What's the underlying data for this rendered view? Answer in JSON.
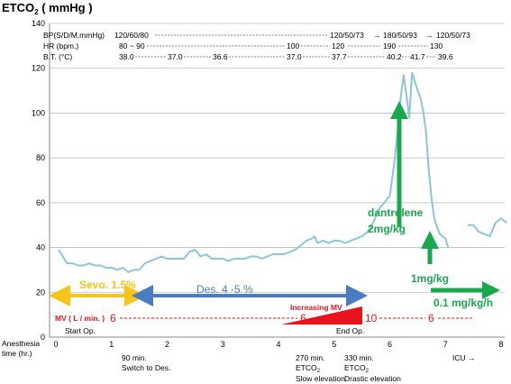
{
  "chart_data": {
    "type": "line",
    "title": "ETCO₂ ( mmHg )",
    "title_main": "ETCO",
    "title_sub": "2",
    "title_unit": " ( mmHg )",
    "xlabel_line1": "Anesthesia",
    "xlabel_line2": "time (hr.)",
    "xlim": [
      0,
      8
    ],
    "ylim": [
      0,
      140
    ],
    "x_ticks": [
      "0",
      "1",
      "2",
      "3",
      "4",
      "5",
      "6",
      "7",
      "8"
    ],
    "y_ticks": [
      "0",
      "20",
      "40",
      "60",
      "80",
      "100",
      "120",
      "140"
    ],
    "grid": "horizontal",
    "series": [
      {
        "name": "",
        "color": "#8cc6d6",
        "points": [
          [
            0.05,
            39
          ],
          [
            0.1,
            37
          ],
          [
            0.2,
            33
          ],
          [
            0.3,
            33
          ],
          [
            0.4,
            32
          ],
          [
            0.5,
            32
          ],
          [
            0.6,
            33
          ],
          [
            0.7,
            32
          ],
          [
            0.8,
            32
          ],
          [
            0.9,
            31
          ],
          [
            1.0,
            31
          ],
          [
            1.1,
            30
          ],
          [
            1.2,
            31
          ],
          [
            1.3,
            29
          ],
          [
            1.4,
            30
          ],
          [
            1.5,
            30
          ],
          [
            1.6,
            33
          ],
          [
            1.7,
            34
          ],
          [
            1.8,
            35
          ],
          [
            1.9,
            36
          ],
          [
            2.0,
            35
          ],
          [
            2.1,
            35
          ],
          [
            2.2,
            35
          ],
          [
            2.3,
            35
          ],
          [
            2.4,
            38
          ],
          [
            2.5,
            39
          ],
          [
            2.6,
            36
          ],
          [
            2.7,
            37
          ],
          [
            2.8,
            35
          ],
          [
            2.9,
            35
          ],
          [
            3.0,
            35
          ],
          [
            3.1,
            34
          ],
          [
            3.2,
            35
          ],
          [
            3.3,
            35
          ],
          [
            3.4,
            35
          ],
          [
            3.5,
            36
          ],
          [
            3.6,
            36
          ],
          [
            3.7,
            35
          ],
          [
            3.8,
            36
          ],
          [
            3.9,
            37
          ],
          [
            4.0,
            37
          ],
          [
            4.1,
            37
          ],
          [
            4.2,
            38
          ],
          [
            4.3,
            39
          ],
          [
            4.4,
            41
          ],
          [
            4.5,
            43
          ],
          [
            4.6,
            44
          ],
          [
            4.65,
            45
          ],
          [
            4.7,
            42
          ],
          [
            4.8,
            43
          ],
          [
            4.9,
            42
          ],
          [
            5.0,
            43
          ],
          [
            5.1,
            43
          ],
          [
            5.2,
            42
          ],
          [
            5.3,
            43
          ],
          [
            5.4,
            44
          ],
          [
            5.5,
            45
          ],
          [
            5.6,
            47
          ],
          [
            5.7,
            51
          ],
          [
            5.8,
            57
          ],
          [
            5.9,
            60
          ],
          [
            6.0,
            63
          ],
          [
            6.05,
            72
          ],
          [
            6.1,
            82
          ],
          [
            6.15,
            95
          ],
          [
            6.2,
            108
          ],
          [
            6.25,
            117
          ],
          [
            6.3,
            108
          ],
          [
            6.35,
            98
          ],
          [
            6.4,
            118
          ],
          [
            6.45,
            114
          ],
          [
            6.5,
            110
          ],
          [
            6.55,
            107
          ],
          [
            6.6,
            101
          ],
          [
            6.65,
            92
          ],
          [
            6.7,
            75
          ],
          [
            6.75,
            62
          ],
          [
            6.8,
            53
          ],
          [
            6.85,
            49
          ],
          [
            6.9,
            46
          ],
          [
            6.95,
            45
          ],
          [
            7.0,
            44
          ],
          [
            7.05,
            40
          ]
        ]
      },
      {
        "name": "",
        "color": "#8cc6d6",
        "points": [
          [
            7.4,
            50
          ],
          [
            7.5,
            50
          ],
          [
            7.6,
            47
          ],
          [
            7.7,
            46
          ],
          [
            7.8,
            45
          ],
          [
            7.9,
            51
          ],
          [
            8.0,
            53
          ],
          [
            8.1,
            51
          ]
        ]
      }
    ],
    "header": {
      "bp_label": "BP(S/D/M,mmHg)",
      "bp_start": "120/60/80",
      "bp_mid": "120/50/73",
      "bp_dash2": "180/50/93",
      "bp_end": "120/50/73",
      "hr_label": "HR  (bpm.)",
      "hr_start": "80 ~ 90",
      "hr_v1": "100",
      "hr_v2": "120",
      "hr_v3": "190",
      "hr_v4": "130",
      "bt_label": "B.T.     (°C)",
      "bt_v1": "38.0",
      "bt_v2": "37.0",
      "bt_v3": "36.6",
      "bt_v4": "37.0",
      "bt_v5": "37.7",
      "bt_v6": "40.2",
      "bt_v7": "41.7",
      "bt_v8": "39.6"
    },
    "annotations": {
      "sevo": "Sevo. 1.5%",
      "des": "Des. 4 -5 %",
      "mv_label": "MV ( L / min. )",
      "mv_v1": "6",
      "mv_v2": "6",
      "mv_v3": "10",
      "mv_v4": "6",
      "increasing_mv": "Increasing MV",
      "dantrolene": "dantrolene",
      "dantrolene_dose": "2mg/kg",
      "dose2": "1mg/kg",
      "dose3": "0.1 mg/kg/h",
      "start_op": "Start Op.",
      "end_op": "End Op.",
      "e1_time": "90 min.",
      "e1_desc": "Switch to Des.",
      "e2_time": "270 min.",
      "e2_etco": "ETCO",
      "e2_sub": "2",
      "e2_desc": "Slow elevation",
      "e3_time": "330 min.",
      "e3_etco": "ETCO",
      "e3_sub": "2",
      "e3_desc": "Drastic elevation",
      "icu": "ICU →"
    },
    "colors": {
      "line": "#8cc6d6",
      "sevo": "#f5c518",
      "des": "#4a7cc2",
      "mv": "#e8131c",
      "dantrolene": "#1aa84c",
      "grid": "#bdbdbd"
    }
  }
}
